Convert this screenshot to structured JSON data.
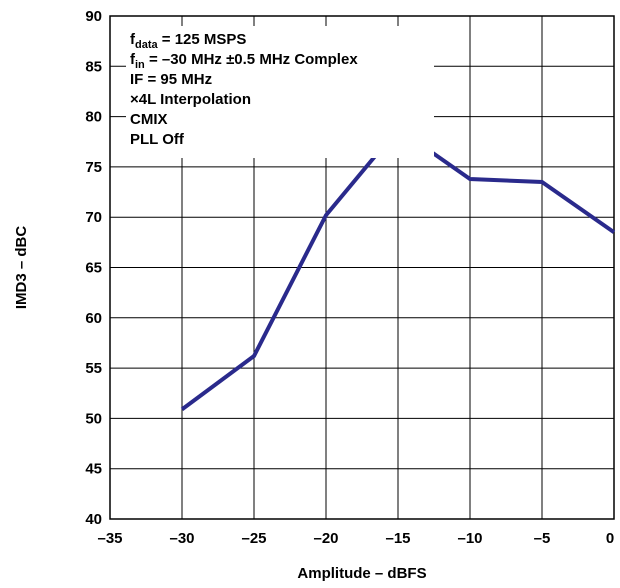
{
  "chart_data": {
    "type": "line",
    "xlabel": "Amplitude – dBFS",
    "ylabel": "IMD3 – dBC",
    "xlim": [
      -35,
      0
    ],
    "ylim": [
      40,
      90
    ],
    "xticks": [
      -35,
      -30,
      -25,
      -20,
      -15,
      -10,
      -5,
      0
    ],
    "yticks": [
      40,
      45,
      50,
      55,
      60,
      65,
      70,
      75,
      80,
      85,
      90
    ],
    "xtick_labels": [
      "–35",
      "–30",
      "–25",
      "–20",
      "–15",
      "–10",
      "–5",
      "0"
    ],
    "ytick_labels": [
      "40",
      "45",
      "50",
      "55",
      "60",
      "65",
      "70",
      "75",
      "80",
      "85",
      "90"
    ],
    "grid": true,
    "series": [
      {
        "color": "#2a2a8c",
        "x": [
          -30,
          -25,
          -20,
          -15,
          -10,
          -5,
          0
        ],
        "y": [
          50.9,
          56.2,
          70.2,
          78.8,
          73.8,
          73.5,
          68.5
        ]
      }
    ],
    "annotation": {
      "lines": [
        {
          "main": "f",
          "sub": "data",
          "rest": " = 125 MSPS"
        },
        {
          "main": "f",
          "sub": "in",
          "rest": " = –30 MHz ±0.5 MHz Complex"
        },
        {
          "main": "IF = 95 MHz",
          "sub": "",
          "rest": ""
        },
        {
          "main": "×4L Interpolation",
          "sub": "",
          "rest": ""
        },
        {
          "main": "CMIX",
          "sub": "",
          "rest": ""
        },
        {
          "main": "PLL Off",
          "sub": "",
          "rest": ""
        }
      ]
    }
  }
}
